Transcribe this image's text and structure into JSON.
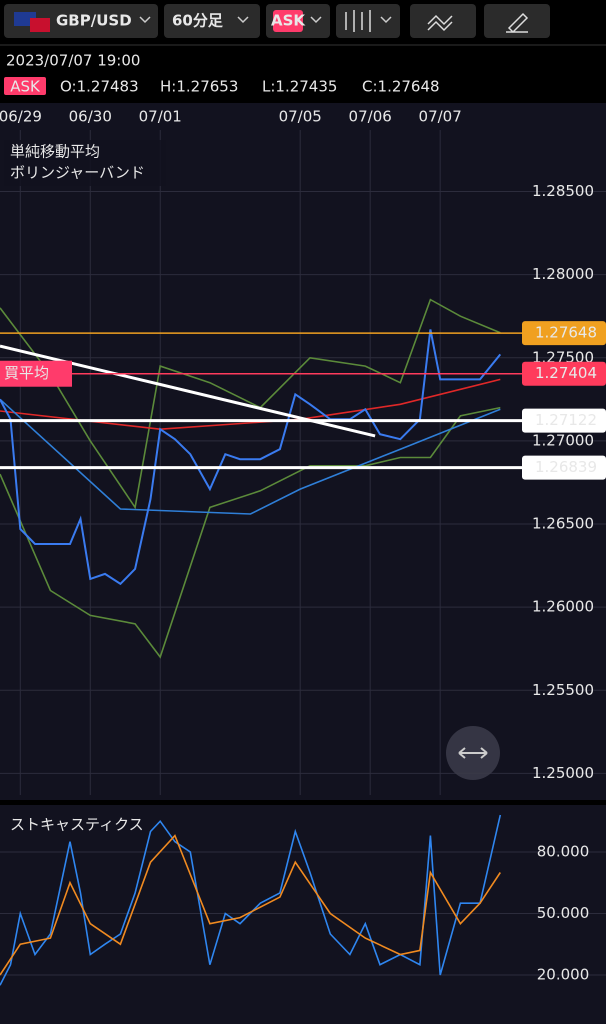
{
  "toolbar": {
    "symbol": "GBP/USD",
    "timeframe": "60分足",
    "side": "ASK"
  },
  "info": {
    "datetime": "2023/07/07 19:00",
    "side": "ASK",
    "open": "O:1.27483",
    "high": "H:1.27653",
    "low": "L:1.27435",
    "close": "C:1.27648"
  },
  "chart_data": [
    {
      "type": "line",
      "indicators": [
        "単純移動平均",
        "ボリンジャーバンド"
      ],
      "xlim": [
        -0.29,
        8.37
      ],
      "xticks": [
        {
          "value": 0,
          "label": "06/29"
        },
        {
          "value": 1,
          "label": "06/30"
        },
        {
          "value": 2,
          "label": "07/01"
        },
        {
          "value": 4,
          "label": "07/05"
        },
        {
          "value": 5,
          "label": "07/06"
        },
        {
          "value": 6,
          "label": "07/07"
        }
      ],
      "ylim": [
        1.2487,
        1.2887
      ],
      "yticks": [
        {
          "value": 1.25,
          "label": "1.25000"
        },
        {
          "value": 1.255,
          "label": "1.25500"
        },
        {
          "value": 1.26,
          "label": "1.26000"
        },
        {
          "value": 1.265,
          "label": "1.26500"
        },
        {
          "value": 1.27,
          "label": "1.27000"
        },
        {
          "value": 1.275,
          "label": "1.27500"
        },
        {
          "value": 1.28,
          "label": "1.28000"
        },
        {
          "value": 1.285,
          "label": "1.28500"
        }
      ],
      "grid": true,
      "series": [
        {
          "color": "#5b8a3a",
          "x": [
            -0.29,
            0.43,
            1,
            1.64,
            2,
            2.71,
            3.43,
            4.14,
            4.93,
            5.43,
            5.86,
            6.29,
            6.86
          ],
          "values": [
            1.278,
            1.274,
            1.27,
            1.266,
            1.2745,
            1.2735,
            1.272,
            1.275,
            1.2745,
            1.2735,
            1.2785,
            1.2775,
            1.2765
          ]
        },
        {
          "color": "#5b8a3a",
          "x": [
            -0.29,
            0.43,
            1,
            1.64,
            2,
            2.71,
            3.43,
            4.14,
            4.93,
            5.43,
            5.86,
            6.29,
            6.86
          ],
          "values": [
            1.268,
            1.261,
            1.2595,
            1.259,
            1.257,
            1.266,
            1.267,
            1.2685,
            1.2685,
            1.269,
            1.269,
            1.2715,
            1.272
          ]
        },
        {
          "color": "#e02828",
          "x": [
            -0.29,
            2,
            4,
            5.43,
            6.86
          ],
          "values": [
            1.2718,
            1.2707,
            1.2713,
            1.2722,
            1.2737
          ]
        },
        {
          "color": "#2f7fd8",
          "x": [
            -0.29,
            1.43,
            3.29,
            4,
            5.43,
            6.86
          ],
          "values": [
            1.2725,
            1.2659,
            1.2656,
            1.2671,
            1.2695,
            1.2719
          ]
        },
        {
          "color": "#3a7bf0",
          "x": [
            -0.29,
            -0.14,
            0,
            0.21,
            0.43,
            0.71,
            0.86,
            1,
            1.21,
            1.43,
            1.64,
            1.86,
            2,
            2.21,
            2.43,
            2.71,
            2.93,
            3.14,
            3.43,
            3.71,
            3.93,
            4.14,
            4.43,
            4.71,
            4.93,
            5.14,
            5.43,
            5.71,
            5.86,
            6,
            6.29,
            6.57,
            6.86
          ],
          "values": [
            1.2725,
            1.2713,
            1.2647,
            1.2638,
            1.2638,
            1.2638,
            1.2653,
            1.2617,
            1.262,
            1.2614,
            1.2623,
            1.2665,
            1.2707,
            1.2701,
            1.2692,
            1.2671,
            1.2692,
            1.2689,
            1.2689,
            1.2695,
            1.2728,
            1.2722,
            1.2713,
            1.2713,
            1.2719,
            1.2704,
            1.2701,
            1.2713,
            1.2767,
            1.2737,
            1.2737,
            1.2737,
            1.2752
          ]
        }
      ],
      "price_lines": [
        {
          "value": 1.27648,
          "color": "#f0a020"
        },
        {
          "value": 1.27404,
          "color": "#ff3b5c"
        },
        {
          "value": 1.27122,
          "color": "#ffffff"
        },
        {
          "value": 1.26839,
          "color": "#ffffff"
        }
      ],
      "buy_average_label": "買平均",
      "trendline": {
        "x": [
          -0.29,
          5.07
        ],
        "values": [
          1.2757,
          1.2703
        ],
        "color": "#ffffff"
      }
    },
    {
      "type": "line",
      "title": "ストキャスティクス",
      "xlim": [
        -0.29,
        8.37
      ],
      "ylim": [
        -3.9,
        102.9
      ],
      "yticks": [
        {
          "value": 20,
          "label": "20.000"
        },
        {
          "value": 50,
          "label": "50.000"
        },
        {
          "value": 80,
          "label": "80.000"
        }
      ],
      "series": [
        {
          "color": "#2f86f0",
          "x": [
            -0.29,
            -0.14,
            0,
            0.21,
            0.43,
            0.71,
            0.86,
            1,
            1.21,
            1.43,
            1.64,
            1.86,
            2,
            2.21,
            2.43,
            2.71,
            2.93,
            3.14,
            3.43,
            3.71,
            3.93,
            4.14,
            4.43,
            4.71,
            4.93,
            5.14,
            5.43,
            5.71,
            5.86,
            6,
            6.29,
            6.57,
            6.86
          ],
          "values": [
            15,
            25,
            50,
            30,
            40,
            85,
            60,
            30,
            35,
            40,
            60,
            90,
            95,
            85,
            80,
            25,
            50,
            45,
            55,
            60,
            90,
            70,
            40,
            30,
            45,
            25,
            30,
            25,
            88,
            20,
            55,
            55,
            98
          ]
        },
        {
          "color": "#f08a20",
          "x": [
            -0.29,
            0,
            0.43,
            0.71,
            1,
            1.43,
            1.86,
            2.21,
            2.71,
            3.14,
            3.71,
            3.93,
            4.43,
            4.93,
            5.43,
            5.71,
            5.86,
            6.29,
            6.57,
            6.86
          ],
          "values": [
            20,
            35,
            38,
            65,
            45,
            35,
            75,
            88,
            45,
            48,
            58,
            75,
            50,
            38,
            30,
            32,
            70,
            45,
            55,
            70
          ]
        }
      ]
    }
  ]
}
